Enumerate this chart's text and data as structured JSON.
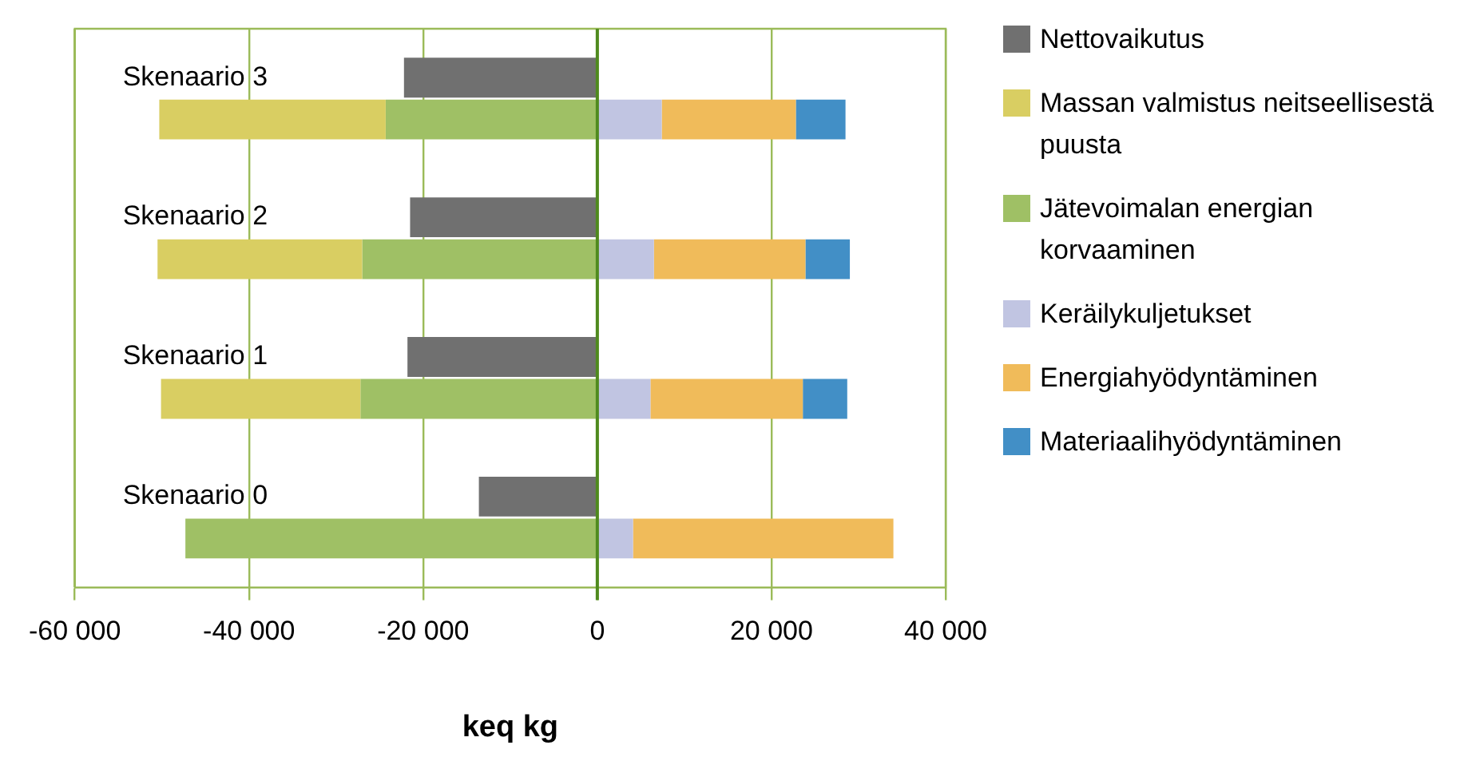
{
  "chart_data": {
    "type": "bar",
    "orientation": "horizontal",
    "xlabel": "keq kg",
    "categories": [
      "Skenaario 3",
      "Skenaario 2",
      "Skenaario 1",
      "Skenaario 0"
    ],
    "series": [
      {
        "name": "Nettovaikutus",
        "color": "#707070",
        "values": [
          -22200,
          -21500,
          -21800,
          -13600
        ]
      },
      {
        "name": "Massan valmistus neitseellisestä puusta",
        "color": "#d9ce62",
        "values": [
          -26000,
          -23500,
          -22900,
          null
        ],
        "base": [
          -24300,
          -27000,
          -27200,
          null
        ]
      },
      {
        "name": "Jätevoimalan energian korvaaminen",
        "color": "#9fc065",
        "values": [
          -24300,
          -27000,
          -27200,
          -47300
        ],
        "base": [
          0,
          0,
          0,
          0
        ]
      },
      {
        "name": "Keräilykuljetukset",
        "color": "#c1c5e2",
        "values": [
          7400,
          6500,
          6100,
          4100
        ],
        "base": [
          0,
          0,
          0,
          0
        ]
      },
      {
        "name": "Energiahyödyntäminen",
        "color": "#f0bb5a",
        "values": [
          15400,
          17400,
          17500,
          29900
        ],
        "base": [
          7400,
          6500,
          6100,
          4100
        ]
      },
      {
        "name": "Materiaalihyödyntäminen",
        "color": "#428fc6",
        "values": [
          5700,
          5100,
          5100,
          null
        ],
        "base": [
          22800,
          23900,
          23600,
          null
        ]
      }
    ],
    "xlim": [
      -60000,
      40000
    ],
    "xticks": [
      {
        "value": -60000,
        "label": "-60 000"
      },
      {
        "value": -40000,
        "label": "-40 000"
      },
      {
        "value": -20000,
        "label": "-20 000"
      },
      0,
      {
        "value": 20000,
        "label": "20 000"
      },
      {
        "value": 40000,
        "label": "40 000"
      }
    ],
    "ref_lines": [
      {
        "axis": "x",
        "value": 0,
        "color": "#4f8a1e"
      }
    ],
    "grid": "x",
    "legend": "right"
  }
}
